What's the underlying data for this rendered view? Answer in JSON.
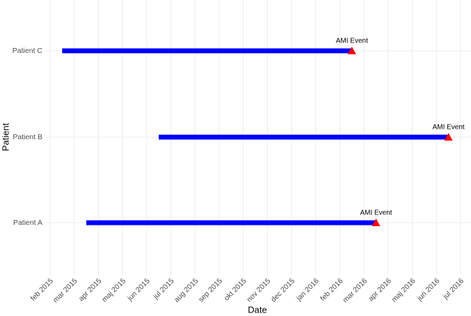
{
  "chart_data": {
    "type": "timeline",
    "x_label": "Date",
    "y_label": "Patient",
    "categories": [
      "Patient A",
      "Patient B",
      "Patient C"
    ],
    "start": [
      "2015-03",
      "2015-06",
      "2015-02"
    ],
    "end": [
      "2016-03",
      "2016-06",
      "2016-02"
    ],
    "event_labels": [
      "AMI Event",
      "AMI Event",
      "AMI Event"
    ],
    "bar_color": "#0000ff",
    "event_color": "#ff0000",
    "xlim": [
      "2015-02",
      "2016-07"
    ],
    "xticks": [
      {
        "value": "2015-02",
        "label": "feb 2015"
      },
      {
        "value": "2015-03",
        "label": "mar 2015"
      },
      {
        "value": "2015-04",
        "label": "apr 2015"
      },
      {
        "value": "2015-05",
        "label": "maj 2015"
      },
      {
        "value": "2015-06",
        "label": "jun 2015"
      },
      {
        "value": "2015-07",
        "label": "jul 2015"
      },
      {
        "value": "2015-08",
        "label": "aug 2015"
      },
      {
        "value": "2015-09",
        "label": "sep 2015"
      },
      {
        "value": "2015-10",
        "label": "okt 2015"
      },
      {
        "value": "2015-11",
        "label": "nov 2015"
      },
      {
        "value": "2015-12",
        "label": "dec 2015"
      },
      {
        "value": "2016-01",
        "label": "jan 2016"
      },
      {
        "value": "2016-02",
        "label": "feb 2016"
      },
      {
        "value": "2016-03",
        "label": "mar 2016"
      },
      {
        "value": "2016-04",
        "label": "apr 2016"
      },
      {
        "value": "2016-05",
        "label": "maj 2016"
      },
      {
        "value": "2016-06",
        "label": "jun 2016"
      },
      {
        "value": "2016-07",
        "label": "jul 2016"
      }
    ],
    "grid": true
  }
}
